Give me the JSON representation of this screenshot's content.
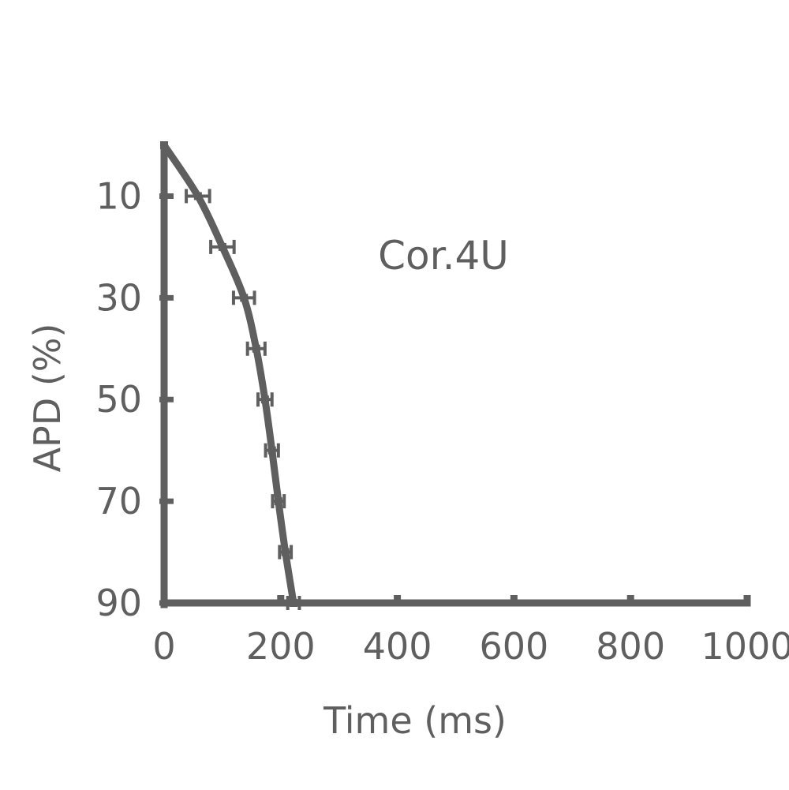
{
  "chart_data": {
    "type": "line",
    "title": "",
    "annotation": "Cor.4U",
    "xlabel": "Time (ms)",
    "ylabel": "APD (%)",
    "xlim": [
      0,
      1000
    ],
    "ylim": [
      0,
      90
    ],
    "y_inverted": true,
    "grid": false,
    "x_ticks": [
      0,
      200,
      400,
      600,
      800,
      1000
    ],
    "y_ticks": [
      10,
      30,
      50,
      70,
      90
    ],
    "colors": {
      "series": "#5f5f5f",
      "text": "#5f5f5f"
    },
    "series": [
      {
        "x": [
          0,
          58,
          100,
          137,
          158,
          173,
          185,
          196,
          208,
          222
        ],
        "y": [
          0,
          10,
          20,
          30,
          40,
          50,
          60,
          70,
          80,
          90
        ],
        "x_err": [
          0,
          20,
          20,
          18,
          15,
          12,
          11,
          10,
          10,
          10
        ]
      }
    ]
  }
}
